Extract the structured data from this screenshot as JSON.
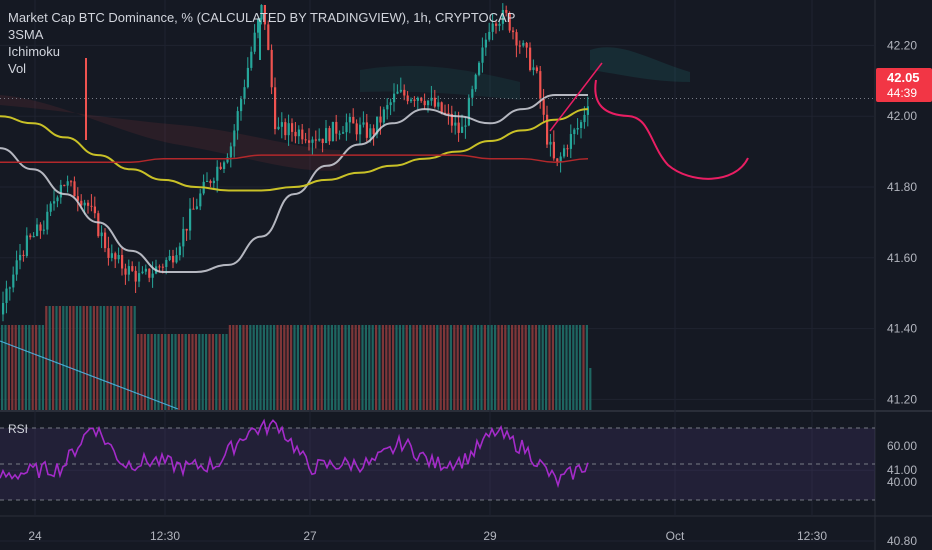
{
  "header": {
    "title": "Market Cap BTC Dominance, % (CALCULATED BY TRADINGVIEW), 1h, CRYPTOCAP",
    "indicators": [
      "3SMA",
      "Ichimoku",
      "Vol"
    ]
  },
  "price_axis": {
    "ticks": [
      "42.20",
      "42.00",
      "41.80",
      "41.60",
      "41.40",
      "41.20",
      "41.00",
      "40.80"
    ],
    "last_price": "42.05",
    "countdown": "44:39"
  },
  "rsi_pane": {
    "label": "RSI",
    "ticks": [
      "60.00",
      "40.00"
    ]
  },
  "time_axis": {
    "ticks": [
      "24",
      "12:30",
      "27",
      "29",
      "Oct",
      "12:30"
    ]
  },
  "colors": {
    "background": "#151923",
    "up_candle": "#26a69a",
    "down_candle": "#ef5350",
    "sma_fast": "#d1d4dc",
    "sma_mid": "#c9c127",
    "sma_slow": "#b2282b",
    "rsi": "#a42bc9",
    "drawing": "#e91e63",
    "price_badge": "#f23645"
  },
  "chart_data": {
    "type": "candlestick",
    "series": [
      {
        "name": "3SMA fast",
        "values": [
          41.91,
          41.85,
          41.78,
          41.7,
          41.62,
          41.56,
          41.56,
          41.58,
          41.66,
          41.78,
          41.86,
          41.92,
          41.98,
          42.02,
          42.0,
          41.98,
          42.02,
          42.06,
          42.06
        ]
      },
      {
        "name": "3SMA mid",
        "values": [
          42.0,
          41.98,
          41.94,
          41.89,
          41.85,
          41.82,
          41.8,
          41.79,
          41.79,
          41.8,
          41.82,
          41.84,
          41.86,
          41.88,
          41.9,
          41.93,
          41.96,
          41.99,
          42.02
        ]
      },
      {
        "name": "3SMA slow",
        "values": [
          41.87,
          41.87,
          41.87,
          41.87,
          41.87,
          41.88,
          41.88,
          41.88,
          41.89,
          41.89,
          41.89,
          41.89,
          41.89,
          41.89,
          41.89,
          41.88,
          41.88,
          41.87,
          41.88
        ]
      },
      {
        "name": "RSI",
        "values": [
          43,
          46,
          48,
          72,
          50,
          52,
          48,
          50,
          68,
          72,
          48,
          50,
          50,
          62,
          50,
          52,
          68,
          58,
          40,
          50
        ]
      }
    ],
    "ylim": [
      40.65,
      42.35
    ],
    "rsi_levels": [
      70,
      50,
      30
    ]
  }
}
